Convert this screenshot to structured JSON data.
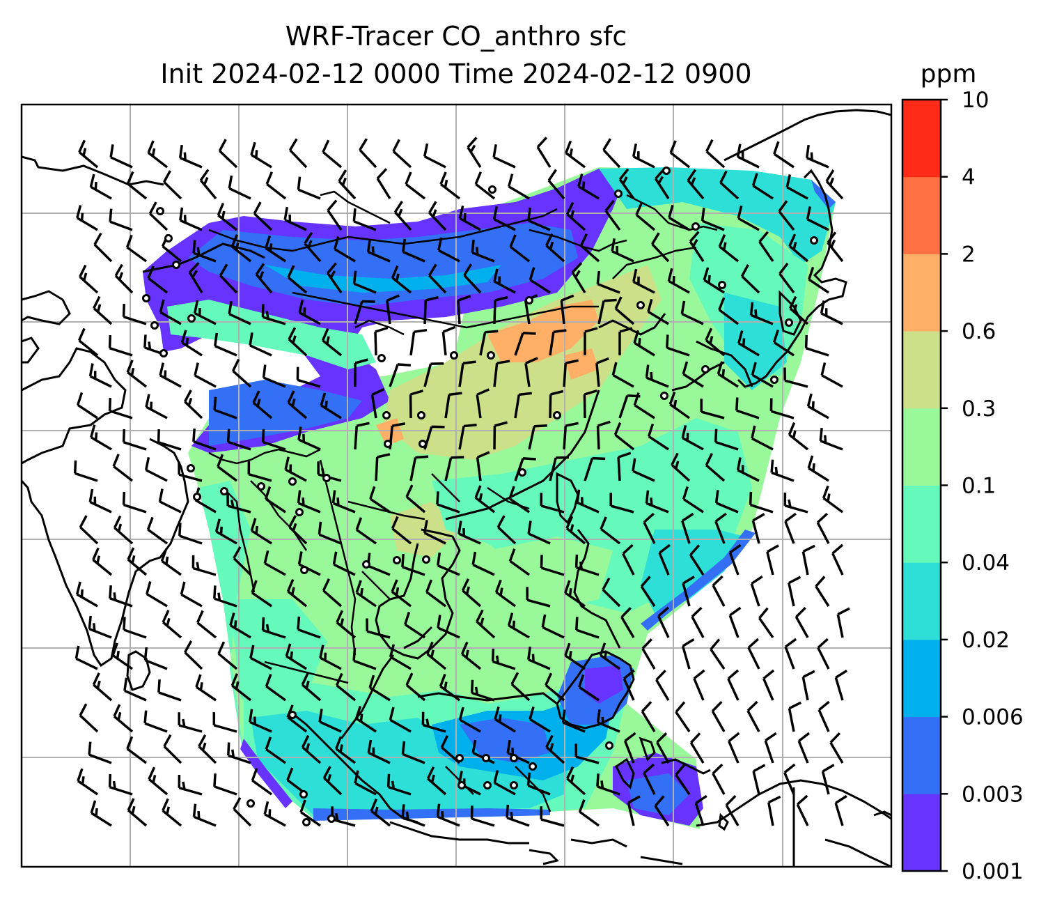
{
  "chart_data": {
    "type": "heatmap",
    "title": "WRF-Tracer CO_anthro sfc",
    "subtitle": "Init 2024-02-12 0000 Time 2024-02-12 0900",
    "colorbar": {
      "unit": "ppm",
      "levels": [
        "0.001",
        "0.003",
        "0.006",
        "0.02",
        "0.04",
        "0.1",
        "0.3",
        "0.6",
        "2",
        "4",
        "10"
      ],
      "colors": [
        "#6633ff",
        "#3370f5",
        "#00b0ec",
        "#2ddfd6",
        "#66f9bc",
        "#99f99a",
        "#cce08a",
        "#ffb066",
        "#ff7043",
        "#ff2a18"
      ]
    },
    "grid": true,
    "overlays": [
      "coastlines",
      "country borders",
      "wind barbs",
      "station markers"
    ]
  }
}
